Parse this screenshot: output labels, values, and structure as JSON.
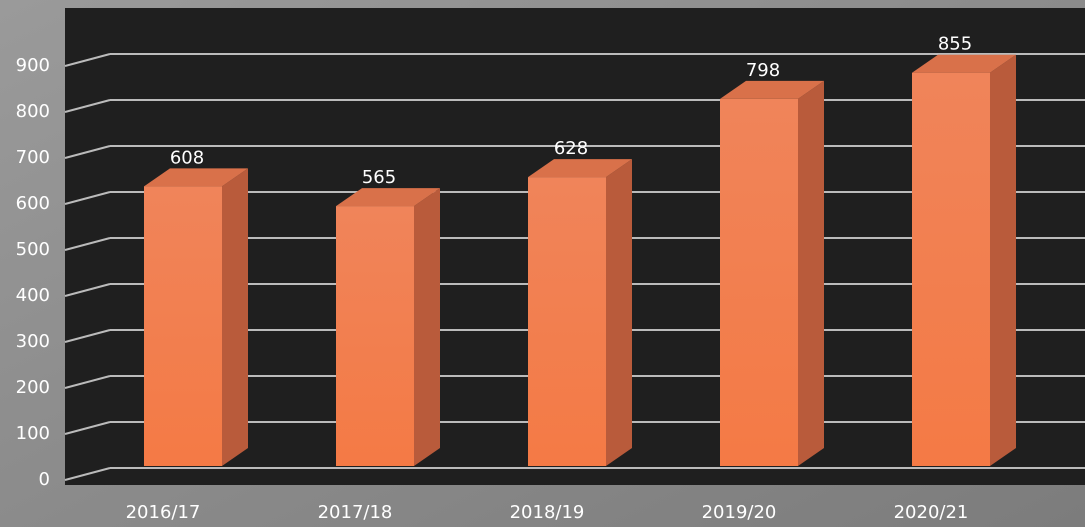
{
  "chart_data": {
    "type": "bar3d",
    "categories": [
      "2016/17",
      "2017/18",
      "2018/19",
      "2019/20",
      "2020/21"
    ],
    "values": [
      608,
      565,
      628,
      798,
      855
    ],
    "color": "#f2875a",
    "ylim": [
      0,
      900
    ],
    "yticks": [
      0,
      100,
      200,
      300,
      400,
      500,
      600,
      700,
      800,
      900
    ],
    "grid": true
  }
}
